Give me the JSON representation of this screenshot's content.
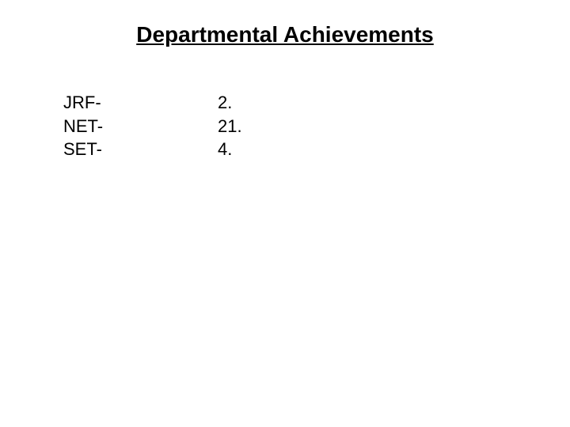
{
  "title": "Departmental Achievements",
  "rows": [
    {
      "label": "JRF-",
      "value": "2."
    },
    {
      "label": "NET-",
      "value": "21."
    },
    {
      "label": "SET-",
      "value": "4."
    }
  ],
  "colors": {
    "background": "#ffffff",
    "text": "#000000"
  },
  "typography": {
    "title_fontsize": 28,
    "body_fontsize": 22,
    "font_family": "Arial"
  }
}
